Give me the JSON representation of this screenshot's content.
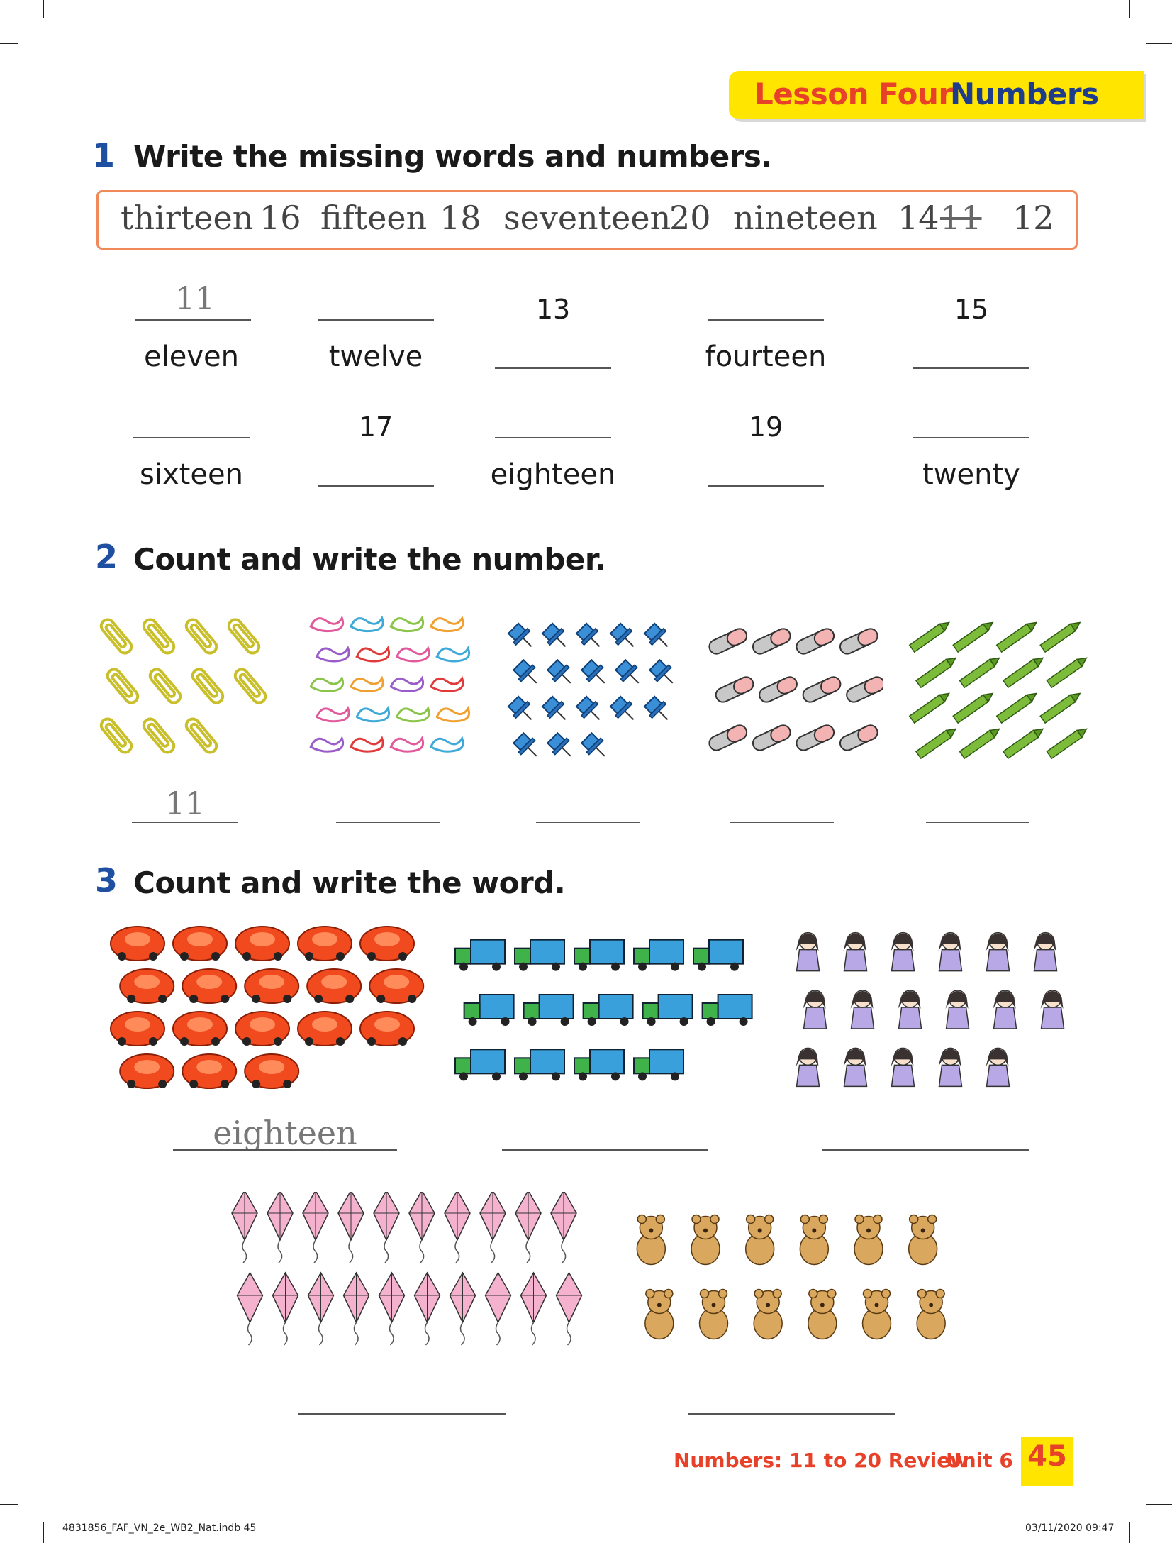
{
  "header": {
    "lesson_label": "Lesson Four",
    "lesson_topic": "Numbers"
  },
  "exercise1": {
    "number": "1",
    "instruction": "Write the missing words and numbers.",
    "word_box": [
      "thirteen",
      "16",
      "fifteen",
      "18",
      "seventeen",
      "20",
      "nineteen",
      "14",
      "11",
      "12"
    ],
    "crossed_out": "11",
    "row1": {
      "top": [
        "11",
        "",
        "13",
        "",
        "15"
      ],
      "bottom": [
        "eleven",
        "twelve",
        "",
        "fourteen",
        ""
      ]
    },
    "row2": {
      "top": [
        "",
        "17",
        "",
        "19",
        ""
      ],
      "bottom": [
        "sixteen",
        "",
        "eighteen",
        "",
        "twenty"
      ]
    }
  },
  "exercise2": {
    "number": "2",
    "instruction": "Count and write the number.",
    "items": [
      {
        "icon": "paperclip-icon",
        "count": 11,
        "answer": "11"
      },
      {
        "icon": "rubber-band-icon",
        "count": 20,
        "answer": ""
      },
      {
        "icon": "pushpin-icon",
        "count": 18,
        "answer": ""
      },
      {
        "icon": "eraser-icon",
        "count": 12,
        "answer": ""
      },
      {
        "icon": "crayon-icon",
        "count": 16,
        "answer": ""
      }
    ]
  },
  "exercise3": {
    "number": "3",
    "instruction": "Count and write the word.",
    "items": [
      {
        "icon": "toy-car-icon",
        "count": 18,
        "answer": "eighteen"
      },
      {
        "icon": "truck-icon",
        "count": 14,
        "answer": ""
      },
      {
        "icon": "doll-icon",
        "count": 17,
        "answer": ""
      },
      {
        "icon": "kite-icon",
        "count": 20,
        "answer": ""
      },
      {
        "icon": "teddy-bear-icon",
        "count": 12,
        "answer": ""
      }
    ]
  },
  "footer": {
    "title": "Numbers: 11 to 20 Review",
    "unit": "Unit 6",
    "page_number": "45",
    "slug_left": "4831856_FAF_VN_2e_WB2_Nat.indb   45",
    "slug_right": "03/11/2020   09:47"
  },
  "colors": {
    "banner_yellow": "#ffe500",
    "accent_red": "#e8412a",
    "heading_blue": "#1e3c8c",
    "box_border_orange": "#f08a5a"
  }
}
